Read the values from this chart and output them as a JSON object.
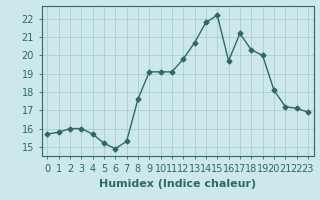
{
  "x": [
    0,
    1,
    2,
    3,
    4,
    5,
    6,
    7,
    8,
    9,
    10,
    11,
    12,
    13,
    14,
    15,
    16,
    17,
    18,
    19,
    20,
    21,
    22,
    23
  ],
  "y": [
    15.7,
    15.8,
    16.0,
    16.0,
    15.7,
    15.2,
    14.9,
    15.3,
    17.6,
    19.1,
    19.1,
    19.1,
    19.8,
    20.7,
    21.8,
    22.2,
    19.7,
    21.2,
    20.3,
    20.0,
    18.1,
    17.2,
    17.1,
    16.9
  ],
  "xlabel": "Humidex (Indice chaleur)",
  "xlim": [
    -0.5,
    23.5
  ],
  "ylim": [
    14.5,
    22.7
  ],
  "yticks": [
    15,
    16,
    17,
    18,
    19,
    20,
    21,
    22
  ],
  "xticks": [
    0,
    1,
    2,
    3,
    4,
    5,
    6,
    7,
    8,
    9,
    10,
    11,
    12,
    13,
    14,
    15,
    16,
    17,
    18,
    19,
    20,
    21,
    22,
    23
  ],
  "line_color": "#2e6b5e",
  "marker": "D",
  "marker_size": 2.5,
  "bg_color": "#cce8ec",
  "grid_color": "#aacdd4",
  "xlabel_fontsize": 8,
  "tick_fontsize": 7,
  "tick_color": "#2e6b5e"
}
